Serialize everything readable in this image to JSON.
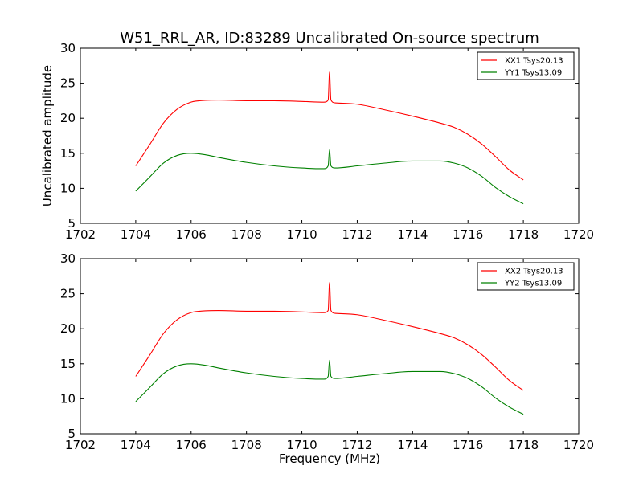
{
  "title": "W51_RRL_AR, ID:83289 Uncalibrated On-source spectrum",
  "chart_data": [
    {
      "type": "line",
      "xlabel": "",
      "ylabel": "Uncalibrated amplitude",
      "xlim": [
        1702,
        1720
      ],
      "ylim": [
        5,
        30
      ],
      "xticks": [
        1702,
        1704,
        1706,
        1708,
        1710,
        1712,
        1714,
        1716,
        1718,
        1720
      ],
      "yticks": [
        5,
        10,
        15,
        20,
        25,
        30
      ],
      "legend_position": "top-right",
      "series": [
        {
          "name": "XX1 Tsys20.13",
          "color": "#ff0000",
          "x": [
            1704.0,
            1704.5,
            1705.0,
            1705.5,
            1706.0,
            1706.5,
            1707.0,
            1708.0,
            1709.0,
            1710.0,
            1710.8,
            1710.95,
            1711.0,
            1711.05,
            1711.2,
            1712.0,
            1713.0,
            1714.0,
            1715.0,
            1715.5,
            1716.0,
            1716.5,
            1717.0,
            1717.5,
            1718.0
          ],
          "y": [
            13.2,
            16.2,
            19.3,
            21.3,
            22.3,
            22.55,
            22.6,
            22.5,
            22.5,
            22.4,
            22.3,
            22.6,
            26.6,
            22.6,
            22.2,
            22.0,
            21.2,
            20.3,
            19.3,
            18.7,
            17.7,
            16.3,
            14.5,
            12.6,
            11.2
          ]
        },
        {
          "name": "YY1 Tsys13.09",
          "color": "#008000",
          "x": [
            1704.0,
            1704.5,
            1705.0,
            1705.5,
            1706.0,
            1706.5,
            1707.0,
            1708.0,
            1709.0,
            1710.0,
            1710.8,
            1710.95,
            1711.0,
            1711.05,
            1711.2,
            1712.0,
            1713.0,
            1714.0,
            1715.0,
            1715.5,
            1716.0,
            1716.5,
            1717.0,
            1717.5,
            1718.0
          ],
          "y": [
            9.6,
            11.6,
            13.6,
            14.7,
            15.0,
            14.8,
            14.4,
            13.7,
            13.2,
            12.9,
            12.8,
            13.2,
            15.5,
            13.2,
            12.9,
            13.2,
            13.6,
            13.9,
            13.9,
            13.6,
            12.9,
            11.7,
            10.1,
            8.8,
            7.8
          ]
        }
      ]
    },
    {
      "type": "line",
      "xlabel": "Frequency (MHz)",
      "ylabel": "",
      "xlim": [
        1702,
        1720
      ],
      "ylim": [
        5,
        30
      ],
      "xticks": [
        1702,
        1704,
        1706,
        1708,
        1710,
        1712,
        1714,
        1716,
        1718,
        1720
      ],
      "yticks": [
        5,
        10,
        15,
        20,
        25,
        30
      ],
      "legend_position": "top-right",
      "series": [
        {
          "name": "XX2 Tsys20.13",
          "color": "#ff0000",
          "x": [
            1704.0,
            1704.5,
            1705.0,
            1705.5,
            1706.0,
            1706.5,
            1707.0,
            1708.0,
            1709.0,
            1710.0,
            1710.8,
            1710.95,
            1711.0,
            1711.05,
            1711.2,
            1712.0,
            1713.0,
            1714.0,
            1715.0,
            1715.5,
            1716.0,
            1716.5,
            1717.0,
            1717.5,
            1718.0
          ],
          "y": [
            13.2,
            16.2,
            19.3,
            21.3,
            22.3,
            22.55,
            22.6,
            22.5,
            22.5,
            22.4,
            22.3,
            22.6,
            26.6,
            22.6,
            22.2,
            22.0,
            21.2,
            20.3,
            19.3,
            18.7,
            17.7,
            16.3,
            14.5,
            12.6,
            11.2
          ]
        },
        {
          "name": "YY2 Tsys13.09",
          "color": "#008000",
          "x": [
            1704.0,
            1704.5,
            1705.0,
            1705.5,
            1706.0,
            1706.5,
            1707.0,
            1708.0,
            1709.0,
            1710.0,
            1710.8,
            1710.95,
            1711.0,
            1711.05,
            1711.2,
            1712.0,
            1713.0,
            1714.0,
            1715.0,
            1715.5,
            1716.0,
            1716.5,
            1717.0,
            1717.5,
            1718.0
          ],
          "y": [
            9.6,
            11.6,
            13.6,
            14.7,
            15.0,
            14.8,
            14.4,
            13.7,
            13.2,
            12.9,
            12.8,
            13.2,
            15.5,
            13.2,
            12.9,
            13.2,
            13.6,
            13.9,
            13.9,
            13.6,
            12.9,
            11.7,
            10.1,
            8.8,
            7.8
          ]
        }
      ]
    }
  ]
}
